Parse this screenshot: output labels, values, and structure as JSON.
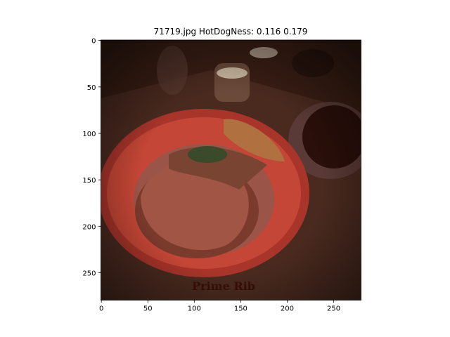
{
  "chart_data": {
    "type": "image",
    "title": "71719.jpg HotDogNess: 0.116 0.179",
    "xlim": [
      -0.5,
      279.5
    ],
    "ylim": [
      279.5,
      -0.5
    ],
    "xticks": [
      0,
      50,
      100,
      150,
      200,
      250
    ],
    "yticks": [
      0,
      50,
      100,
      150,
      200,
      250
    ]
  }
}
